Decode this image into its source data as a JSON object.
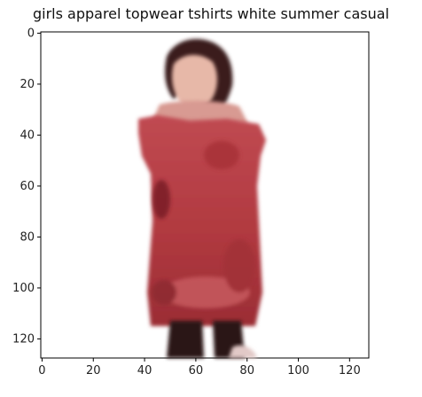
{
  "title": "girls apparel topwear tshirts white summer casual",
  "image": {
    "description_colors": {
      "background": "#ffffff",
      "dress": "#b13a40",
      "dress_dark": "#7a1f27",
      "skin": "#e7b8a8",
      "hair": "#3a1b1e",
      "legs": "#2a1417"
    }
  },
  "axes": {
    "x_ticks": [
      "0",
      "20",
      "40",
      "60",
      "80",
      "100",
      "120"
    ],
    "y_ticks": [
      "0",
      "20",
      "40",
      "60",
      "80",
      "100",
      "120"
    ],
    "xlim": [
      0,
      128
    ],
    "ylim": [
      128,
      0
    ]
  }
}
